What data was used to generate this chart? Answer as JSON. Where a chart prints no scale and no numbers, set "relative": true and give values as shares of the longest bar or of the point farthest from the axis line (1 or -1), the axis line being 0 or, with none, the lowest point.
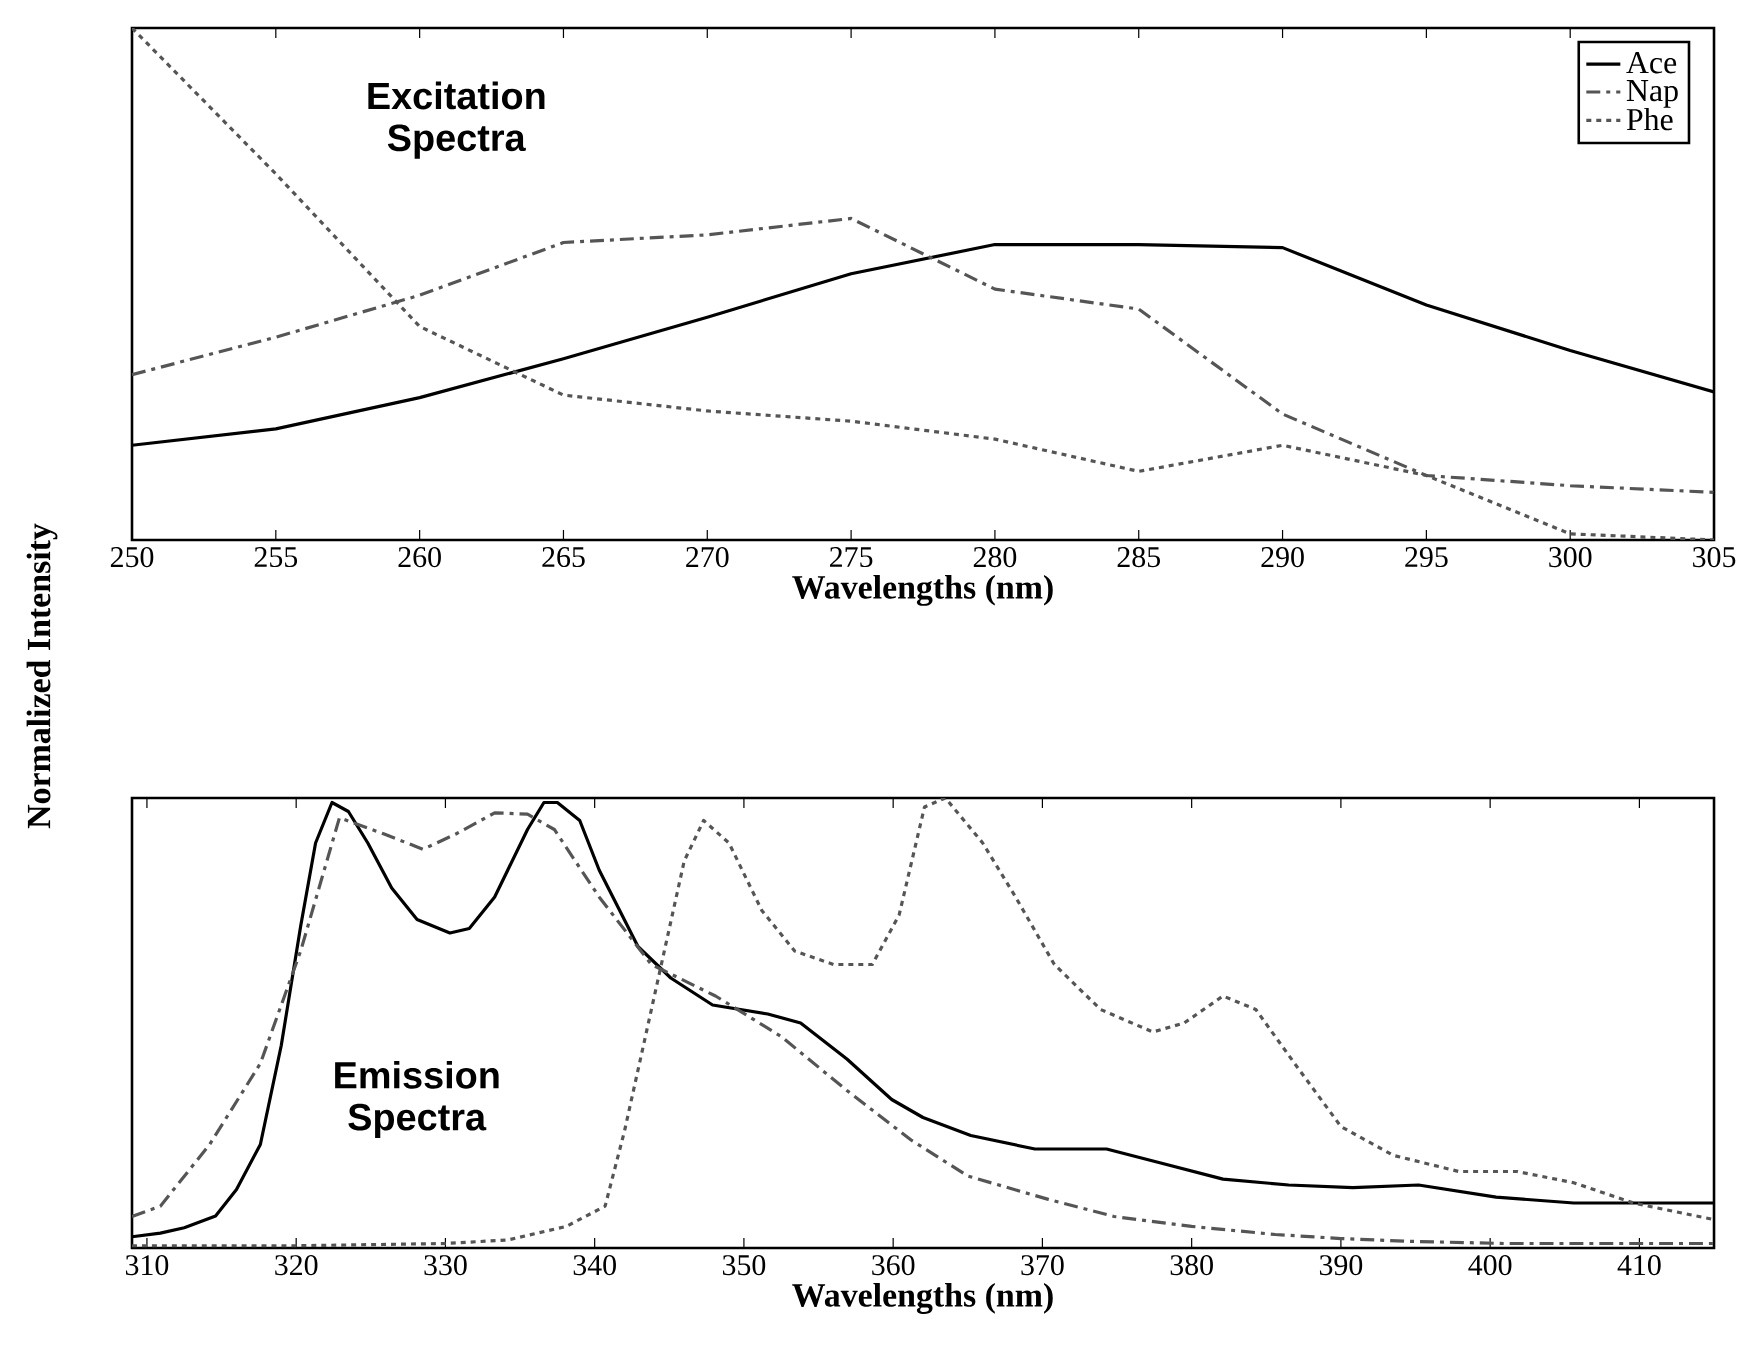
{
  "chart_data": [
    {
      "type": "line",
      "relative": true,
      "xlabel": "Wavelengths (nm)",
      "ylabel": "Normalized Intensity",
      "x": [
        250,
        255,
        260,
        265,
        270,
        275,
        280,
        285,
        290,
        295,
        300,
        305
      ],
      "xlim": [
        250,
        305
      ],
      "xticks": [
        250,
        255,
        260,
        265,
        270,
        275,
        280,
        285,
        290,
        295,
        300,
        305
      ],
      "legend": "top right",
      "grid": false,
      "annotations": [
        "**Excitation Spectra**"
      ],
      "series": [
        {
          "name": "Ace",
          "color": "#000000",
          "line_style": "solid",
          "values": [
            0.185,
            0.217,
            0.278,
            0.354,
            0.435,
            0.52,
            0.577,
            0.577,
            0.571,
            0.459,
            0.37,
            0.289
          ]
        },
        {
          "name": "Nap",
          "color": "#555555",
          "line_style": "dashdot",
          "values": [
            0.323,
            0.396,
            0.478,
            0.581,
            0.596,
            0.628,
            0.49,
            0.451,
            0.246,
            0.126,
            0.106,
            0.093
          ]
        },
        {
          "name": "Phe",
          "color": "#555555",
          "line_style": "dotted",
          "values": [
            1.0,
            0.715,
            0.417,
            0.283,
            0.252,
            0.232,
            0.197,
            0.134,
            0.185,
            0.126,
            0.012,
            0.0
          ]
        }
      ]
    },
    {
      "type": "line",
      "relative": true,
      "xlabel": "Wavelengths (nm)",
      "xlim": [
        309,
        415
      ],
      "xticks": [
        310,
        320,
        330,
        340,
        350,
        360,
        370,
        380,
        390,
        400,
        410
      ],
      "legend": false,
      "grid": false,
      "annotations": [
        "**Emission Spectra**"
      ],
      "series": [
        {
          "color": "#000000",
          "line_style": "solid",
          "x": [
            309,
            310.9,
            312.5,
            314.6,
            316,
            317.6,
            319,
            320.3,
            321.3,
            322.4,
            323.5,
            324.8,
            326.4,
            328.1,
            330.3,
            331.6,
            333.3,
            335.5,
            336.6,
            337.5,
            339,
            340.3,
            342.9,
            345.1,
            347.9,
            351.6,
            353.8,
            356.9,
            359.9,
            362,
            365.2,
            369.5,
            374.3,
            377.8,
            382.1,
            386.5,
            390.8,
            395.2,
            400.4,
            405.6,
            409.6,
            415
          ],
          "values": [
            0.025,
            0.033,
            0.045,
            0.071,
            0.13,
            0.23,
            0.45,
            0.715,
            0.9,
            0.99,
            0.97,
            0.9,
            0.8,
            0.73,
            0.7,
            0.71,
            0.78,
            0.93,
            0.99,
            0.99,
            0.95,
            0.84,
            0.67,
            0.6,
            0.54,
            0.52,
            0.5,
            0.42,
            0.33,
            0.29,
            0.25,
            0.22,
            0.22,
            0.19,
            0.153,
            0.14,
            0.134,
            0.14,
            0.113,
            0.1,
            0.1,
            0.1
          ]
        },
        {
          "color": "#555555",
          "line_style": "dashdot",
          "x": [
            309,
            310.9,
            314.2,
            317.6,
            320.3,
            322.9,
            325.9,
            328.5,
            330.7,
            333.3,
            335.5,
            337.3,
            340.3,
            343.8,
            348.1,
            352.5,
            356.9,
            361.2,
            365,
            370.4,
            374.8,
            380,
            385.6,
            390,
            394.4,
            400.9,
            415
          ],
          "values": [
            0.07,
            0.093,
            0.23,
            0.41,
            0.66,
            0.956,
            0.92,
            0.886,
            0.92,
            0.967,
            0.964,
            0.93,
            0.78,
            0.63,
            0.56,
            0.47,
            0.35,
            0.24,
            0.16,
            0.108,
            0.07,
            0.048,
            0.03,
            0.021,
            0.015,
            0.01,
            0.01
          ]
        },
        {
          "color": "#555555",
          "line_style": "dotted",
          "x": [
            309,
            320,
            330,
            334.2,
            338.1,
            340.7,
            342,
            344.2,
            346,
            347.3,
            349,
            351.2,
            353.4,
            356,
            358.6,
            360.4,
            362.1,
            363.5,
            366,
            368.2,
            370.8,
            373.9,
            377.4,
            379.5,
            382.1,
            384.3,
            386.9,
            390,
            393.5,
            397.9,
            401.8,
            405.6,
            409.6,
            415
          ],
          "values": [
            0.005,
            0.005,
            0.01,
            0.018,
            0.048,
            0.093,
            0.26,
            0.59,
            0.86,
            0.95,
            0.9,
            0.75,
            0.66,
            0.63,
            0.63,
            0.74,
            0.98,
            1.0,
            0.9,
            0.78,
            0.63,
            0.53,
            0.48,
            0.5,
            0.56,
            0.53,
            0.41,
            0.27,
            0.206,
            0.17,
            0.17,
            0.145,
            0.1,
            0.063
          ]
        }
      ]
    }
  ]
}
